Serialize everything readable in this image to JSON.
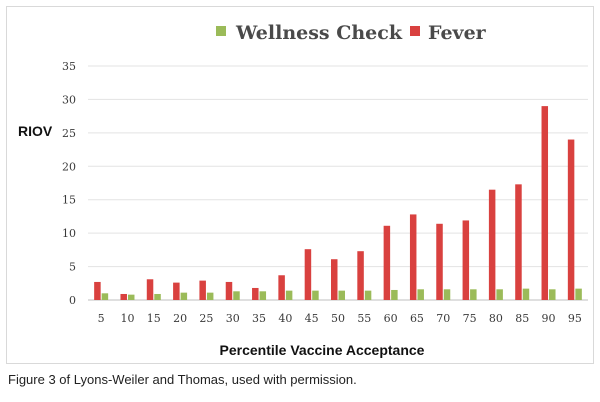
{
  "chart_data": {
    "type": "bar",
    "title": "",
    "xlabel": "Percentile Vaccine Acceptance",
    "ylabel": "RIOV",
    "ylim": [
      0,
      35
    ],
    "yticks": [
      0,
      5,
      10,
      15,
      20,
      25,
      30,
      35
    ],
    "grid": true,
    "legend_position": "top-center",
    "categories": [
      "5",
      "10",
      "15",
      "20",
      "25",
      "30",
      "35",
      "40",
      "45",
      "50",
      "55",
      "60",
      "65",
      "70",
      "75",
      "80",
      "85",
      "90",
      "95"
    ],
    "series": [
      {
        "name": "Wellness Check",
        "color": "#9bbb59",
        "values": [
          1.0,
          0.8,
          0.9,
          1.1,
          1.1,
          1.3,
          1.3,
          1.4,
          1.4,
          1.4,
          1.4,
          1.5,
          1.6,
          1.6,
          1.6,
          1.6,
          1.7,
          1.6,
          1.7
        ]
      },
      {
        "name": "Fever",
        "color": "#d9413f",
        "values": [
          2.7,
          0.9,
          3.1,
          2.6,
          2.9,
          2.7,
          1.8,
          3.7,
          7.6,
          6.1,
          7.3,
          11.1,
          12.8,
          11.4,
          11.9,
          16.5,
          17.3,
          29.0,
          24.0
        ]
      }
    ]
  },
  "caption": "Figure 3 of Lyons-Weiler and Thomas, used with permission."
}
